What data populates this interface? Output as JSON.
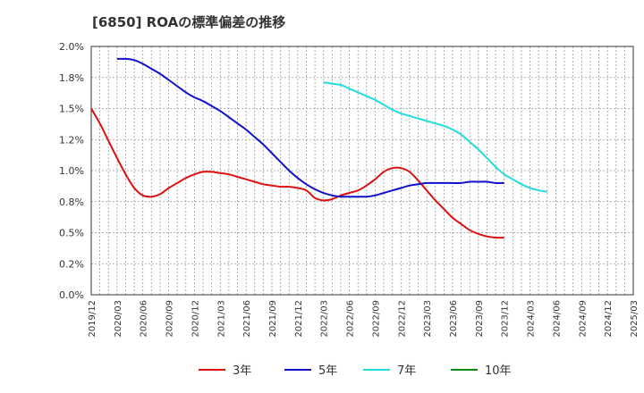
{
  "chart_data": {
    "type": "line",
    "title": "[6850]  ROAの標準偏差の推移",
    "xlabel": "",
    "ylabel": "",
    "ylim": [
      0,
      2.0
    ],
    "y_ticks": [
      "0.0%",
      "0.2%",
      "0.5%",
      "0.8%",
      "1.0%",
      "1.2%",
      "1.5%",
      "1.8%",
      "2.0%"
    ],
    "y_tick_values": [
      0,
      0.25,
      0.5,
      0.75,
      1.0,
      1.25,
      1.5,
      1.75,
      2.0
    ],
    "x_ticks": [
      "2019/12",
      "2020/03",
      "2020/06",
      "2020/09",
      "2020/12",
      "2021/03",
      "2021/06",
      "2021/09",
      "2021/12",
      "2022/03",
      "2022/06",
      "2022/09",
      "2022/12",
      "2023/03",
      "2023/06",
      "2023/09",
      "2023/12",
      "2024/03",
      "2024/06",
      "2024/09",
      "2024/12",
      "2025/03"
    ],
    "grid": true,
    "legend_position": "bottom",
    "series": [
      {
        "name": "3年",
        "color": "#dd1111",
        "start_index": 0,
        "values": [
          1.5,
          1.38,
          1.24,
          1.1,
          0.97,
          0.86,
          0.8,
          0.79,
          0.81,
          0.86,
          0.9,
          0.94,
          0.97,
          0.99,
          0.99,
          0.98,
          0.97,
          0.95,
          0.93,
          0.91,
          0.89,
          0.88,
          0.87,
          0.87,
          0.86,
          0.84,
          0.78,
          0.76,
          0.77,
          0.8,
          0.82,
          0.84,
          0.88,
          0.93,
          0.99,
          1.02,
          1.02,
          0.99,
          0.92,
          0.84,
          0.76,
          0.69,
          0.62,
          0.57,
          0.52,
          0.49,
          0.47,
          0.46,
          0.46
        ]
      },
      {
        "name": "5年",
        "color": "#1111cc",
        "start_index": 3,
        "values": [
          1.9,
          1.9,
          1.89,
          1.86,
          1.82,
          1.78,
          1.73,
          1.68,
          1.63,
          1.59,
          1.56,
          1.52,
          1.48,
          1.43,
          1.38,
          1.33,
          1.27,
          1.21,
          1.14,
          1.07,
          1.0,
          0.94,
          0.89,
          0.85,
          0.82,
          0.8,
          0.79,
          0.79,
          0.79,
          0.79,
          0.8,
          0.82,
          0.84,
          0.86,
          0.88,
          0.89,
          0.9,
          0.9,
          0.9,
          0.9,
          0.9,
          0.91,
          0.91,
          0.91,
          0.9,
          0.9
        ]
      },
      {
        "name": "7年",
        "color": "#22dddd",
        "start_index": 27,
        "values": [
          1.71,
          1.7,
          1.69,
          1.66,
          1.63,
          1.6,
          1.57,
          1.53,
          1.49,
          1.46,
          1.44,
          1.42,
          1.4,
          1.38,
          1.36,
          1.33,
          1.29,
          1.23,
          1.17,
          1.1,
          1.03,
          0.97,
          0.93,
          0.89,
          0.86,
          0.84,
          0.83
        ]
      },
      {
        "name": "10年",
        "color": "#118811",
        "start_index": 0,
        "values": []
      }
    ]
  }
}
